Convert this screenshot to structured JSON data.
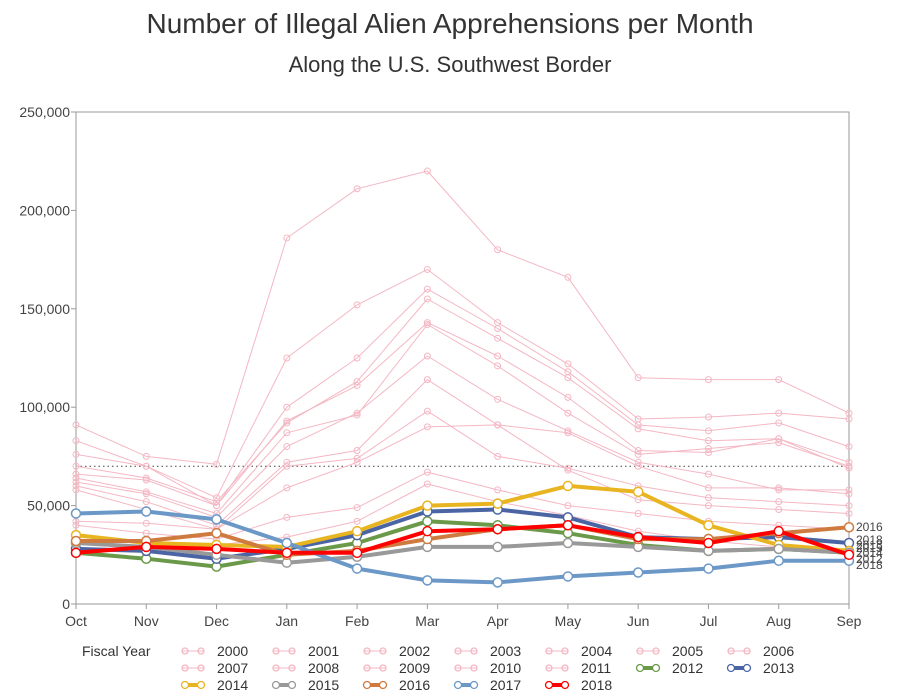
{
  "title": "Number of Illegal Alien Apprehensions per Month",
  "subtitle": "Along the U.S. Southwest Border",
  "chart_data": {
    "type": "line",
    "title": "Number of Illegal Alien Apprehensions per Month",
    "subtitle": "Along the U.S. Southwest Border",
    "xlabel": "",
    "ylabel": "",
    "categories": [
      "Oct",
      "Nov",
      "Dec",
      "Jan",
      "Feb",
      "Mar",
      "Apr",
      "May",
      "Jun",
      "Jul",
      "Aug",
      "Sep"
    ],
    "ylim": [
      0,
      250000
    ],
    "yticks": [
      0,
      50000,
      100000,
      150000,
      200000,
      250000
    ],
    "ytick_labels": [
      "0",
      "50,000",
      "100,000",
      "150,000",
      "200,000",
      "250,000"
    ],
    "reference_line": 70000,
    "grid": false,
    "legend_title": "Fiscal Year",
    "legend_position": "bottom",
    "series": [
      {
        "name": "2000",
        "color": "#f4b7c3",
        "highlight": false,
        "values": [
          91000,
          75000,
          71000,
          186000,
          211000,
          220000,
          180000,
          166000,
          115000,
          114000,
          114000,
          97000
        ]
      },
      {
        "name": "2001",
        "color": "#f4b7c3",
        "highlight": false,
        "values": [
          83000,
          70000,
          54000,
          125000,
          152000,
          170000,
          143000,
          122000,
          94000,
          95000,
          97000,
          94000
        ]
      },
      {
        "name": "2002",
        "color": "#f4b7c3",
        "highlight": false,
        "values": [
          76000,
          70000,
          50000,
          100000,
          125000,
          160000,
          140000,
          118000,
          91000,
          88000,
          92000,
          80000
        ]
      },
      {
        "name": "2003",
        "color": "#f4b7c3",
        "highlight": false,
        "values": [
          70000,
          64000,
          52000,
          92000,
          113000,
          155000,
          135000,
          115000,
          89000,
          83000,
          84000,
          72000
        ]
      },
      {
        "name": "2004",
        "color": "#f4b7c3",
        "highlight": false,
        "values": [
          66000,
          63000,
          50000,
          93000,
          111000,
          143000,
          126000,
          105000,
          78000,
          77000,
          84000,
          69000
        ]
      },
      {
        "name": "2005",
        "color": "#f4b7c3",
        "highlight": false,
        "values": [
          64000,
          57000,
          46000,
          87000,
          96000,
          142000,
          121000,
          97000,
          76000,
          79000,
          82000,
          70000
        ]
      },
      {
        "name": "2006",
        "color": "#f4b7c3",
        "highlight": false,
        "values": [
          62000,
          56000,
          44000,
          80000,
          97000,
          126000,
          104000,
          88000,
          72000,
          66000,
          58000,
          58000
        ]
      },
      {
        "name": "2007",
        "color": "#f4b7c3",
        "highlight": false,
        "values": [
          60000,
          52000,
          40000,
          72000,
          78000,
          114000,
          91000,
          87000,
          70000,
          59000,
          59000,
          56000
        ]
      },
      {
        "name": "2008",
        "color": "#f4b7c3",
        "highlight": false,
        "values": [
          58000,
          48000,
          38000,
          70000,
          74000,
          98000,
          75000,
          69000,
          60000,
          54000,
          52000,
          50000
        ]
      },
      {
        "name": "2009",
        "color": "#f4b7c3",
        "highlight": false,
        "values": [
          42000,
          41000,
          38000,
          59000,
          72000,
          90000,
          91000,
          68000,
          53000,
          50000,
          48000,
          46000
        ]
      },
      {
        "name": "2010",
        "color": "#f4b7c3",
        "highlight": false,
        "values": [
          40000,
          36000,
          33000,
          44000,
          49000,
          67000,
          58000,
          50000,
          46000,
          42000,
          40000,
          38000
        ]
      },
      {
        "name": "2011",
        "color": "#f4b7c3",
        "highlight": false,
        "values": [
          34000,
          32000,
          30000,
          34000,
          42000,
          61000,
          52000,
          45000,
          37000,
          32000,
          29000,
          28000
        ]
      },
      {
        "name": "2012",
        "color": "#6a9a49",
        "highlight": true,
        "values": [
          26000,
          23000,
          19000,
          25000,
          31000,
          42000,
          40000,
          36000,
          30000,
          27000,
          28000,
          26000
        ]
      },
      {
        "name": "2013",
        "color": "#4a64a4",
        "highlight": true,
        "values": [
          28000,
          27000,
          23000,
          28000,
          35000,
          47000,
          48000,
          44000,
          34000,
          33000,
          34000,
          31000
        ]
      },
      {
        "name": "2014",
        "color": "#e8b521",
        "highlight": true,
        "values": [
          35000,
          31000,
          30000,
          29000,
          37000,
          50000,
          51000,
          60000,
          57000,
          40000,
          30000,
          27000
        ]
      },
      {
        "name": "2015",
        "color": "#999999",
        "highlight": true,
        "values": [
          31000,
          29000,
          25000,
          21000,
          24000,
          29000,
          29000,
          31000,
          29000,
          27000,
          28000,
          26000
        ]
      },
      {
        "name": "2016",
        "color": "#cf7a3f",
        "highlight": true,
        "values": [
          32000,
          32000,
          36000,
          25000,
          27000,
          33000,
          38000,
          40000,
          33000,
          33000,
          36000,
          39000
        ]
      },
      {
        "name": "2017",
        "color": "#6b98c7",
        "highlight": true,
        "values": [
          46000,
          47000,
          43000,
          31000,
          18000,
          12000,
          11000,
          14000,
          16000,
          18000,
          22000,
          22000
        ]
      },
      {
        "name": "2018",
        "color": "#ff0000",
        "highlight": true,
        "values": [
          26000,
          29000,
          28000,
          26000,
          26000,
          37000,
          38000,
          40000,
          34000,
          31000,
          37000,
          25000
        ]
      }
    ],
    "end_labels": [
      "2016",
      "2018",
      "2013",
      "2015",
      "2014",
      "2012",
      "2018"
    ]
  }
}
